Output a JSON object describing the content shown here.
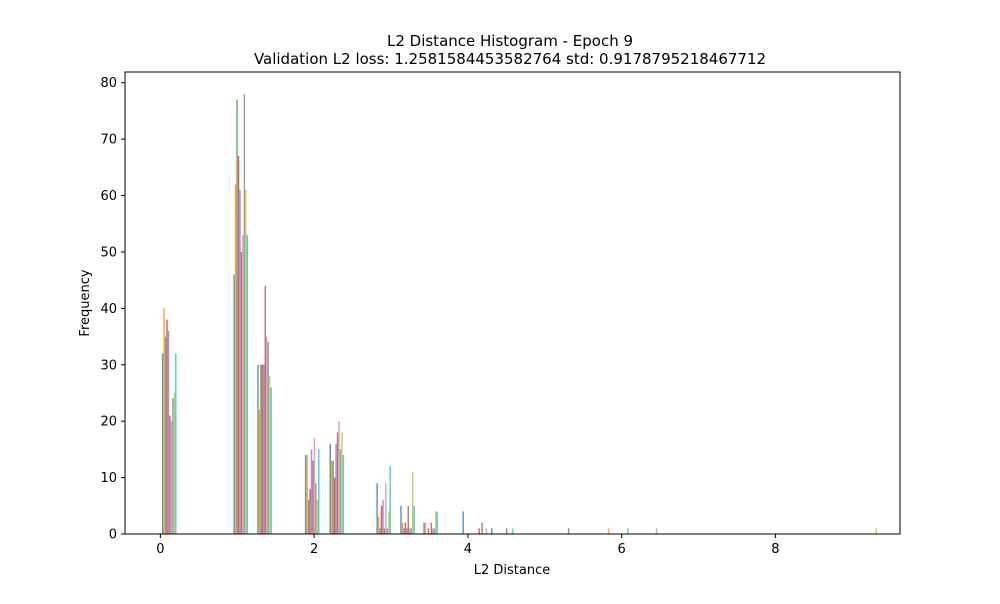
{
  "chart_data": {
    "type": "bar",
    "title": "L2 Distance Histogram - Epoch 9",
    "subtitle": "Validation L2 loss: 1.2581584453582764 std: 0.9178795218467712",
    "xlabel": "L2 Distance",
    "ylabel": "Frequency",
    "xlim": [
      -0.46,
      9.62
    ],
    "ylim": [
      0,
      81.9
    ],
    "xticks": [
      0,
      2,
      4,
      6,
      8
    ],
    "yticks": [
      0,
      10,
      20,
      30,
      40,
      50,
      60,
      70,
      80
    ],
    "grid": false,
    "legend": "none",
    "bar_width": 0.019,
    "series_colors": [
      "#1f77b4",
      "#ff7f0e",
      "#2ca02c",
      "#d62728",
      "#9467bd",
      "#8c564b",
      "#e377c2",
      "#7f7f7f",
      "#bcbd22",
      "#17becf"
    ],
    "bar_groups": [
      {
        "x0": 0.02,
        "values": [
          32,
          40,
          35,
          38,
          36,
          21,
          20,
          24,
          25,
          32
        ]
      },
      {
        "x0": 0.95,
        "values": [
          46,
          62,
          77,
          67,
          61,
          50,
          53,
          78,
          61,
          53
        ]
      },
      {
        "x0": 1.26,
        "values": [
          30,
          22,
          30,
          30,
          30,
          44,
          35,
          34,
          28,
          26
        ]
      },
      {
        "x0": 1.88,
        "values": [
          14,
          14,
          6,
          8,
          15,
          13,
          17,
          9,
          6,
          15
        ]
      },
      {
        "x0": 2.2,
        "values": [
          16,
          13,
          13,
          10,
          16,
          18,
          20,
          15,
          18,
          14
        ]
      },
      {
        "x0": 2.81,
        "values": [
          9,
          3,
          1,
          5,
          6,
          1,
          9,
          1,
          4,
          12
        ]
      },
      {
        "x0": 3.12,
        "values": [
          5,
          2,
          1,
          2,
          1,
          5,
          1,
          1,
          11,
          5
        ]
      },
      {
        "x0": 3.42,
        "values": [
          2,
          2,
          0,
          1,
          0,
          2,
          1,
          1,
          4,
          4
        ]
      },
      {
        "x0": 3.93,
        "values": [
          4,
          0,
          0,
          0,
          0,
          0,
          0,
          0,
          0,
          0
        ]
      },
      {
        "x0": 4.08,
        "values": [
          0,
          0,
          0,
          1,
          0,
          2,
          0,
          0,
          1,
          0
        ]
      },
      {
        "x0": 4.3,
        "values": [
          1,
          0,
          0,
          0,
          0,
          0,
          0,
          0,
          0,
          0
        ]
      },
      {
        "x0": 4.4,
        "values": [
          0,
          0,
          0,
          0,
          0,
          1,
          0,
          0,
          0,
          1
        ]
      },
      {
        "x0": 5.3,
        "values": [
          1,
          0,
          0,
          0,
          0,
          0,
          0,
          0,
          0,
          0
        ]
      },
      {
        "x0": 5.8,
        "values": [
          0,
          1,
          0,
          0,
          0,
          0,
          0,
          0,
          0,
          0
        ]
      },
      {
        "x0": 5.9,
        "values": [
          0,
          0,
          0,
          0,
          0,
          0,
          0,
          0,
          0,
          1
        ]
      },
      {
        "x0": 6.33,
        "values": [
          0,
          0,
          0,
          0,
          0,
          0,
          1,
          0,
          0,
          0
        ]
      },
      {
        "x0": 9.15,
        "values": [
          0,
          0,
          0,
          0,
          0,
          0,
          0,
          0,
          1,
          0
        ]
      }
    ]
  }
}
